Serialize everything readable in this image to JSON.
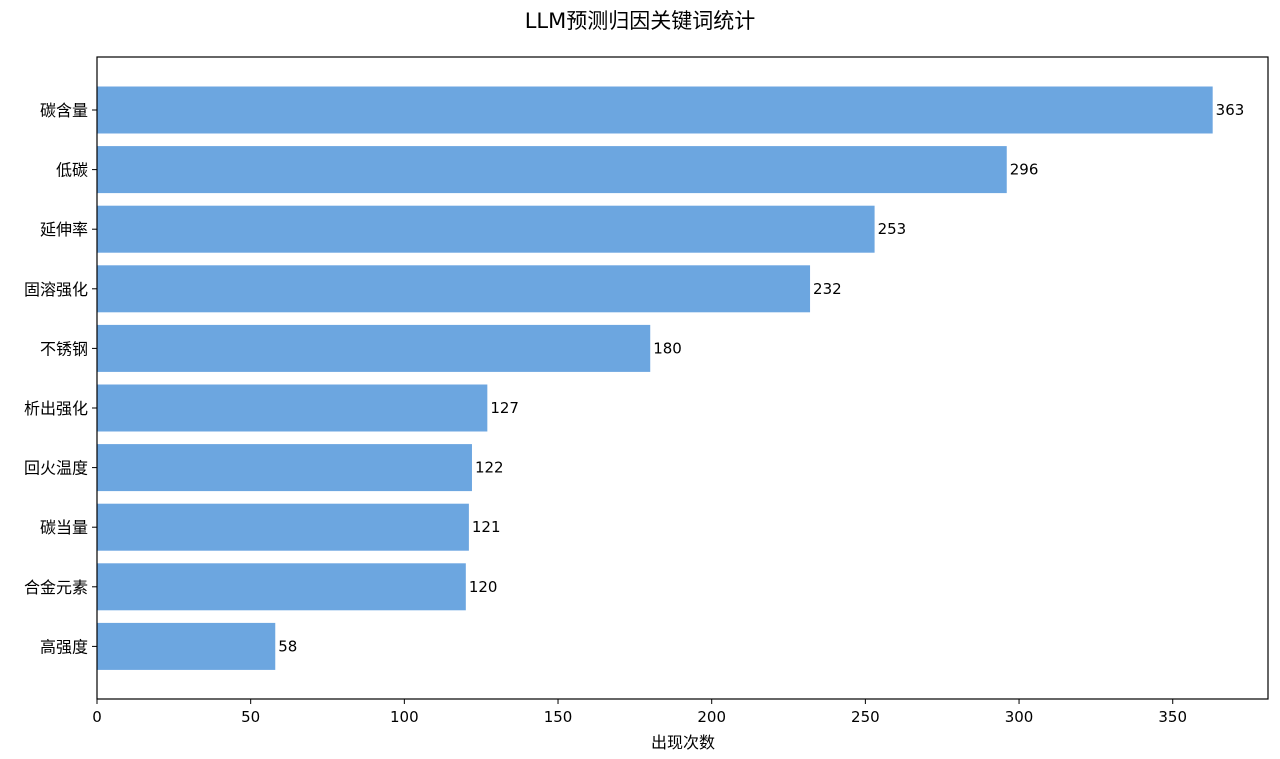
{
  "chart_data": {
    "type": "bar",
    "orientation": "horizontal",
    "title": "LLM预测归因关键词统计",
    "xlabel": "出现次数",
    "ylabel": "",
    "categories": [
      "碳含量",
      "低碳",
      "延伸率",
      "固溶强化",
      "不锈钢",
      "析出强化",
      "回火温度",
      "碳当量",
      "合金元素",
      "高强度"
    ],
    "values": [
      363,
      296,
      253,
      232,
      180,
      127,
      122,
      121,
      120,
      58
    ],
    "xlim": [
      0,
      381
    ],
    "xticks": [
      0,
      50,
      100,
      150,
      200,
      250,
      300,
      350
    ],
    "bar_color": "#6ca6e0",
    "grid": false,
    "legend": "none"
  }
}
